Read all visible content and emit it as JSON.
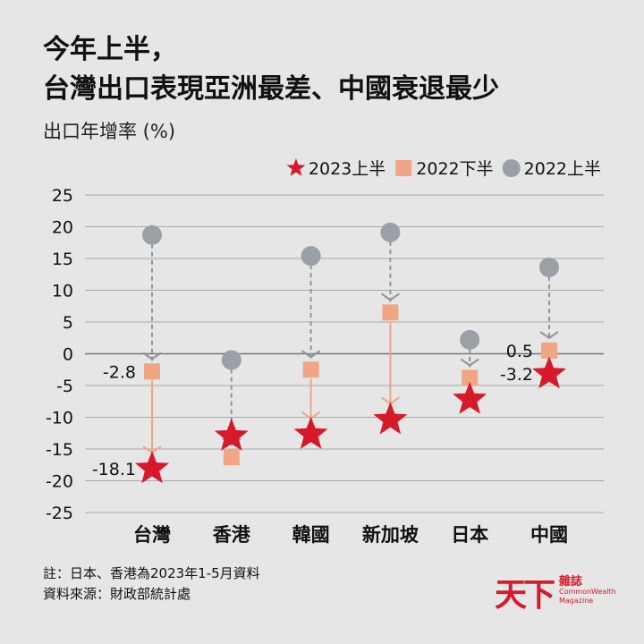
{
  "header": {
    "title_line1": "今年上半，",
    "title_line2": "台灣出口表現亞洲最差、中國衰退最少",
    "subtitle": "出口年增率 (%)"
  },
  "chart_data": {
    "type": "scatter",
    "categories": [
      "台灣",
      "香港",
      "韓國",
      "新加坡",
      "日本",
      "中國"
    ],
    "series": [
      {
        "name": "2023上半",
        "marker": "star",
        "color": "#d7192a",
        "values": [
          -18.1,
          -13,
          -12.7,
          -10.4,
          -7.2,
          -3.2
        ]
      },
      {
        "name": "2022下半",
        "marker": "square",
        "color": "#f0a585",
        "values": [
          -2.8,
          -16.3,
          -2.5,
          6.5,
          -3.8,
          0.5
        ]
      },
      {
        "name": "2022上半",
        "marker": "circle",
        "color": "#9aa0a6",
        "values": [
          18.7,
          -1,
          15.4,
          19.1,
          2.2,
          13.6
        ]
      }
    ],
    "data_labels": [
      {
        "category": "台灣",
        "series": "2022下半",
        "text": "-2.8"
      },
      {
        "category": "台灣",
        "series": "2023上半",
        "text": "-18.1"
      },
      {
        "category": "中國",
        "series": "2022下半",
        "text": "0.5"
      },
      {
        "category": "中國",
        "series": "2023上半",
        "text": "-3.2"
      }
    ],
    "ylim": [
      -25,
      25
    ],
    "yticks": [
      25,
      20,
      15,
      10,
      5,
      0,
      -5,
      -10,
      -15,
      -20,
      -25
    ],
    "grid": true,
    "legend": "top-right",
    "xlabel": "",
    "ylabel": ""
  },
  "footer": {
    "note": "註：日本、香港為2023年1-5月資料",
    "source": "資料來源：財政部統計處"
  },
  "brand": {
    "mark": "天下",
    "name_zh": "雜誌",
    "name_en_1": "CommonWealth",
    "name_en_2": "Magazine"
  },
  "colors": {
    "background": "#e6e6e6",
    "star": "#d7192a",
    "square": "#f0a585",
    "circle": "#9aa0a6",
    "dashed_arrow": "#8f949a",
    "solid_arrow": "#f0a585"
  }
}
